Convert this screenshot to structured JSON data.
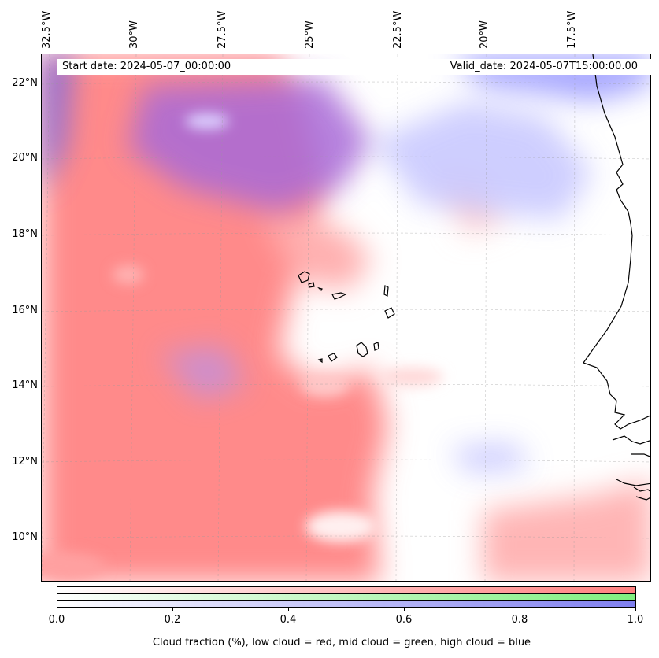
{
  "map": {
    "header": {
      "start_date": "Start date: 2024-05-07_00:00:00",
      "valid_date": "Valid_date: 2024-05-07T15:00:00.00"
    },
    "longitude_labels": [
      "32.5°W",
      "30°W",
      "27.5°W",
      "25°W",
      "22.5°W",
      "20°W",
      "17.5°W"
    ],
    "latitude_labels": [
      "22°N",
      "20°N",
      "18°N",
      "16°N",
      "14°N",
      "12°N",
      "10°N"
    ],
    "gridlines": true,
    "colors": {
      "low_cloud": "#ff7f7f",
      "mid_cloud": "#7fef7f",
      "high_cloud": "#7f7fef",
      "coastline": "#000000"
    }
  },
  "colorbar": {
    "ticks": [
      "0.0",
      "0.2",
      "0.4",
      "0.6",
      "0.8",
      "1.0"
    ],
    "caption": "Cloud fraction (%), low cloud = red, mid cloud = green, high cloud = blue"
  }
}
